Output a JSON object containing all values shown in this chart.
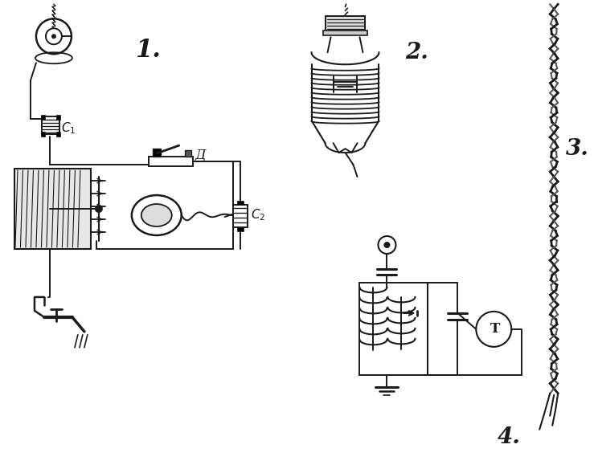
{
  "bg_color": "#ffffff",
  "line_color": "#1a1a1a",
  "fig_w": 7.39,
  "fig_h": 5.84,
  "dpi": 100
}
